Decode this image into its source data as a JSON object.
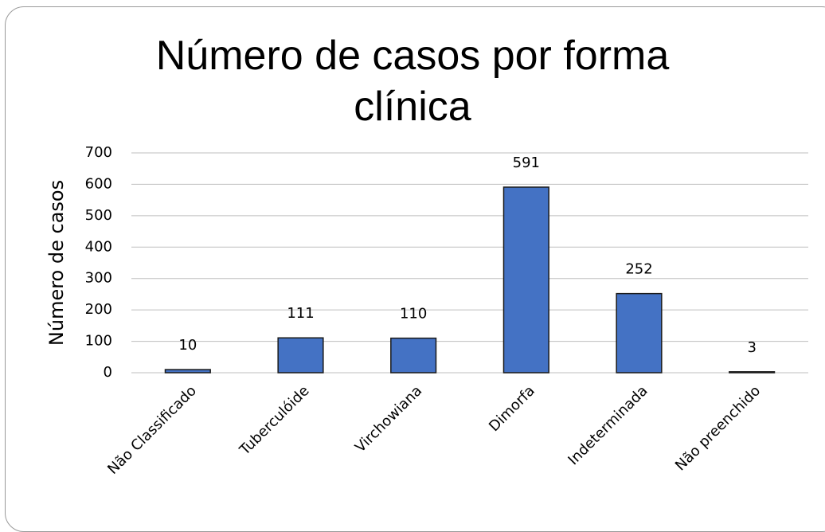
{
  "chart_data": {
    "type": "bar",
    "title": "Número de casos por forma clínica",
    "y_label": "Número de casos",
    "categories": [
      "Não Classificado",
      "Tuberculóide",
      "Virchowiana",
      "Dimorfa",
      "Indeterminada",
      "Não preenchido"
    ],
    "values": [
      10,
      111,
      110,
      591,
      252,
      3
    ],
    "color": "#4472c4",
    "ylim": [
      0,
      700
    ],
    "yticks": [
      0,
      100,
      200,
      300,
      400,
      500,
      600,
      700
    ],
    "grid": true
  }
}
